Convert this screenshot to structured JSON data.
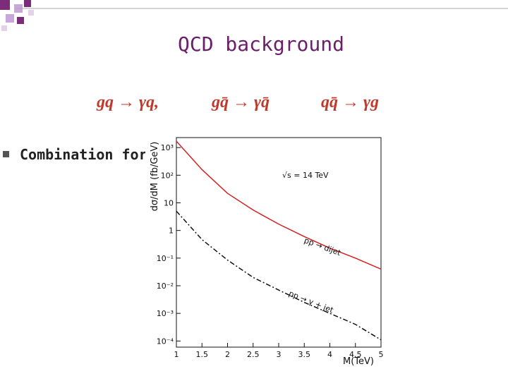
{
  "header": {
    "title": "QCD background"
  },
  "formulas": [
    "gq → γq,",
    "gq̄ → γq̄",
    "qq̄ → γg"
  ],
  "bullet": "Combination for",
  "chart_data": {
    "type": "line",
    "x_label": "M(TeV)",
    "y_label": "dσ/dM (fb/GeV)",
    "annotation": "√s = 14 TeV",
    "log_y": true,
    "x": [
      1,
      1.5,
      2,
      2.5,
      3,
      3.5,
      4,
      4.5,
      5
    ],
    "series": [
      {
        "name": "pp → dijet",
        "color": "#d42020",
        "dash": false,
        "values": [
          1700,
          160,
          22,
          5.5,
          1.7,
          0.6,
          0.23,
          0.1,
          0.04
        ]
      },
      {
        "name": "pp → γ + jet",
        "color": "#111111",
        "dash": true,
        "values": [
          5,
          0.47,
          0.085,
          0.02,
          0.007,
          0.0025,
          0.001,
          0.0004,
          0.00011
        ]
      }
    ],
    "xlim": [
      1,
      5
    ],
    "xticks": [
      1,
      1.5,
      2,
      2.5,
      3,
      3.5,
      4,
      4.5,
      5
    ],
    "ylim": [
      6e-05,
      2300
    ],
    "yticks": [
      {
        "value": 1000,
        "label": "10³"
      },
      {
        "value": 100,
        "label": "10²"
      },
      10,
      1,
      {
        "value": 0.1,
        "label": "10⁻¹"
      },
      {
        "value": 0.01,
        "label": "10⁻²"
      },
      {
        "value": 0.001,
        "label": "10⁻³"
      },
      {
        "value": 0.0001,
        "label": "10⁻⁴"
      }
    ]
  }
}
